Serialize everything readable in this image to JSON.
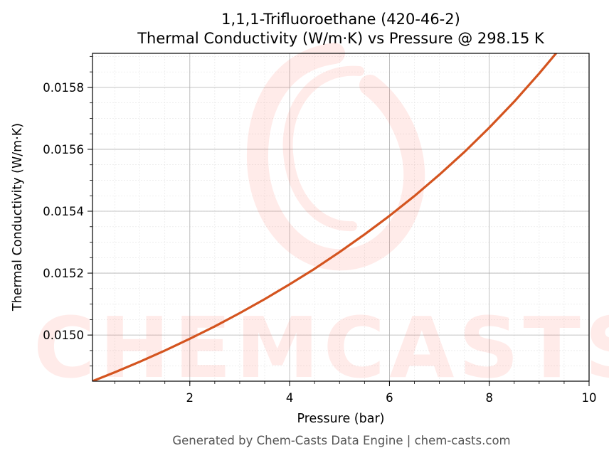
{
  "chart_data": {
    "type": "line",
    "title": "1,1,1-Trifluoroethane (420-46-2)",
    "subtitle": "Thermal Conductivity (W/m·K) vs Pressure @ 298.15 K",
    "xlabel": "Pressure (bar)",
    "ylabel": "Thermal Conductivity (W/m·K)",
    "xlim": [
      0.05,
      10
    ],
    "ylim": [
      0.014851,
      0.01591
    ],
    "xticks": [
      2,
      4,
      6,
      8,
      10
    ],
    "xtick_labels": [
      "2",
      "4",
      "6",
      "8",
      "10"
    ],
    "yticks": [
      0.015,
      0.0152,
      0.0154,
      0.0156,
      0.0158
    ],
    "ytick_labels": [
      "0.0150",
      "0.0152",
      "0.0154",
      "0.0156",
      "0.0158"
    ],
    "grid": true,
    "series": [
      {
        "color": "#d4541f",
        "x": [
          0.05,
          0.5,
          1,
          1.5,
          2,
          2.5,
          3,
          3.5,
          4,
          4.5,
          5,
          5.5,
          6,
          6.5,
          7,
          7.5,
          8,
          8.5,
          9,
          9.5,
          10
        ],
        "y": [
          0.014851,
          0.01488,
          0.014914,
          0.01495,
          0.014988,
          0.015028,
          0.015071,
          0.015116,
          0.015164,
          0.015214,
          0.015268,
          0.015325,
          0.015385,
          0.015449,
          0.015518,
          0.015591,
          0.01567,
          0.015754,
          0.015845,
          0.015941,
          0.016045
        ]
      }
    ]
  },
  "watermark": {
    "text": "CHEMCASTS",
    "color": "#ff6b5a"
  },
  "footer": "Generated by Chem-Casts Data Engine | chem-casts.com"
}
